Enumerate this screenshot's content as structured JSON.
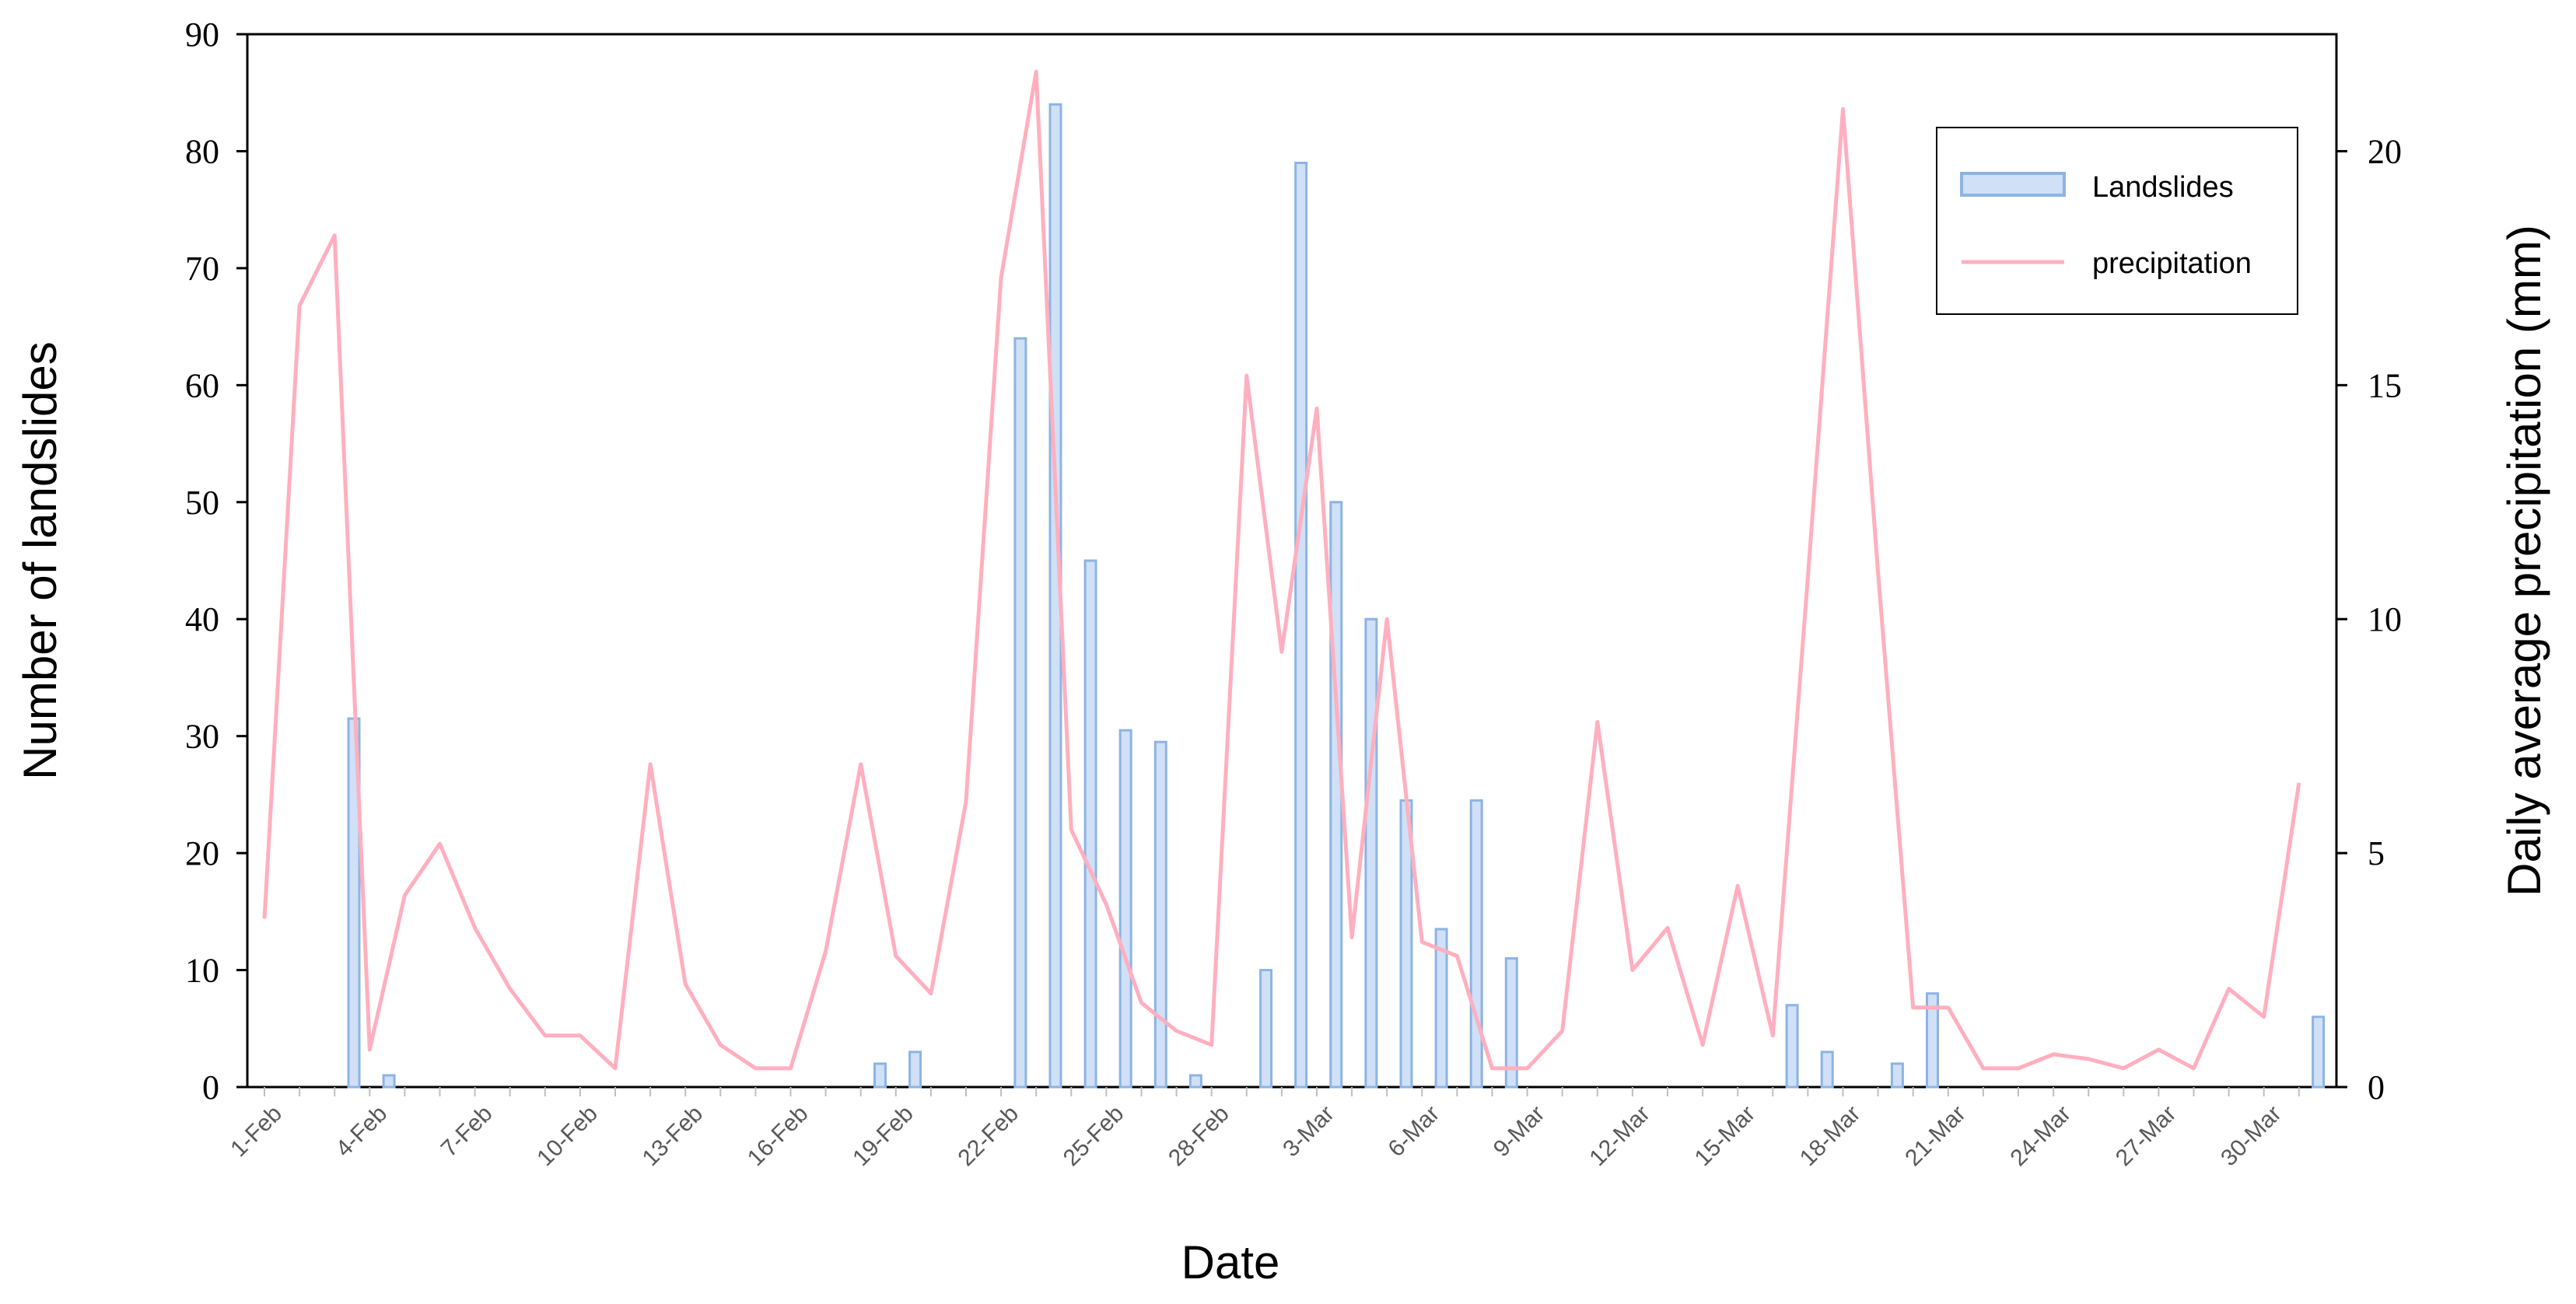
{
  "chart_data": {
    "type": "bar+line",
    "xlabel": "Date",
    "ylabel_left": "Number of landslides",
    "ylabel_right": "Daily average precipitation (mm)",
    "ylim_left": [
      0,
      90
    ],
    "yticks_left": [
      0,
      10,
      20,
      30,
      40,
      50,
      60,
      70,
      80,
      90
    ],
    "ylim_right": [
      0,
      22.5
    ],
    "yticks_right": [
      0,
      5,
      10,
      15,
      20
    ],
    "x_tick_labels": [
      "1-Feb",
      "4-Feb",
      "7-Feb",
      "10-Feb",
      "13-Feb",
      "16-Feb",
      "19-Feb",
      "22-Feb",
      "25-Feb",
      "28-Feb",
      "3-Mar",
      "6-Mar",
      "9-Mar",
      "12-Mar",
      "15-Mar",
      "18-Mar",
      "21-Mar",
      "24-Mar",
      "27-Mar",
      "30-Mar"
    ],
    "dates": [
      "1-Feb",
      "2-Feb",
      "3-Feb",
      "4-Feb",
      "5-Feb",
      "6-Feb",
      "7-Feb",
      "8-Feb",
      "9-Feb",
      "10-Feb",
      "11-Feb",
      "12-Feb",
      "13-Feb",
      "14-Feb",
      "15-Feb",
      "16-Feb",
      "17-Feb",
      "18-Feb",
      "19-Feb",
      "20-Feb",
      "21-Feb",
      "22-Feb",
      "23-Feb",
      "24-Feb",
      "25-Feb",
      "26-Feb",
      "27-Feb",
      "28-Feb",
      "1-Mar",
      "2-Mar",
      "3-Mar",
      "4-Mar",
      "5-Mar",
      "6-Mar",
      "7-Mar",
      "8-Mar",
      "9-Mar",
      "10-Mar",
      "11-Mar",
      "12-Mar",
      "13-Mar",
      "14-Mar",
      "15-Mar",
      "16-Mar",
      "17-Mar",
      "18-Mar",
      "19-Mar",
      "20-Mar",
      "21-Mar",
      "22-Mar",
      "23-Mar",
      "24-Mar",
      "25-Mar",
      "26-Mar",
      "27-Mar",
      "28-Mar",
      "29-Mar",
      "30-Mar",
      "31-Mar"
    ],
    "series": [
      {
        "name": "Landslides",
        "type": "bar",
        "axis": "left",
        "color": "#cfe0f7",
        "edge_color": "#8db4e2",
        "values": [
          0,
          0,
          31.5,
          1,
          0,
          0,
          0,
          0,
          0,
          0,
          0,
          0,
          0,
          0,
          0,
          0,
          0,
          2,
          3,
          0,
          0,
          64,
          84,
          45,
          30.5,
          29.5,
          1,
          0,
          10,
          79,
          50,
          40,
          24.5,
          13.5,
          24.5,
          11,
          0,
          0,
          0,
          0,
          0,
          0,
          0,
          7,
          3,
          0,
          2,
          8,
          0,
          0,
          0,
          0,
          0,
          0,
          0,
          0,
          0,
          0,
          6
        ]
      },
      {
        "name": "precipitation",
        "type": "line",
        "axis": "right",
        "color": "#ffafbf",
        "values": [
          3.6,
          16.7,
          18.2,
          0.8,
          4.1,
          5.2,
          3.4,
          2.1,
          1.1,
          1.1,
          0.4,
          6.9,
          2.2,
          0.9,
          0.4,
          0.4,
          2.9,
          6.9,
          2.8,
          2.0,
          6.1,
          17.3,
          21.7,
          5.5,
          3.9,
          1.8,
          1.2,
          0.9,
          15.2,
          9.3,
          14.5,
          3.2,
          10.0,
          3.1,
          2.8,
          0.4,
          0.4,
          1.2,
          7.8,
          2.5,
          3.4,
          0.9,
          4.3,
          1.1,
          10.9,
          20.9,
          11.0,
          1.7,
          1.7,
          0.4,
          0.4,
          0.7,
          0.6,
          0.4,
          0.8,
          0.4,
          2.1,
          1.5,
          6.5
        ]
      }
    ],
    "legend_position": "top-right",
    "grid": false
  }
}
